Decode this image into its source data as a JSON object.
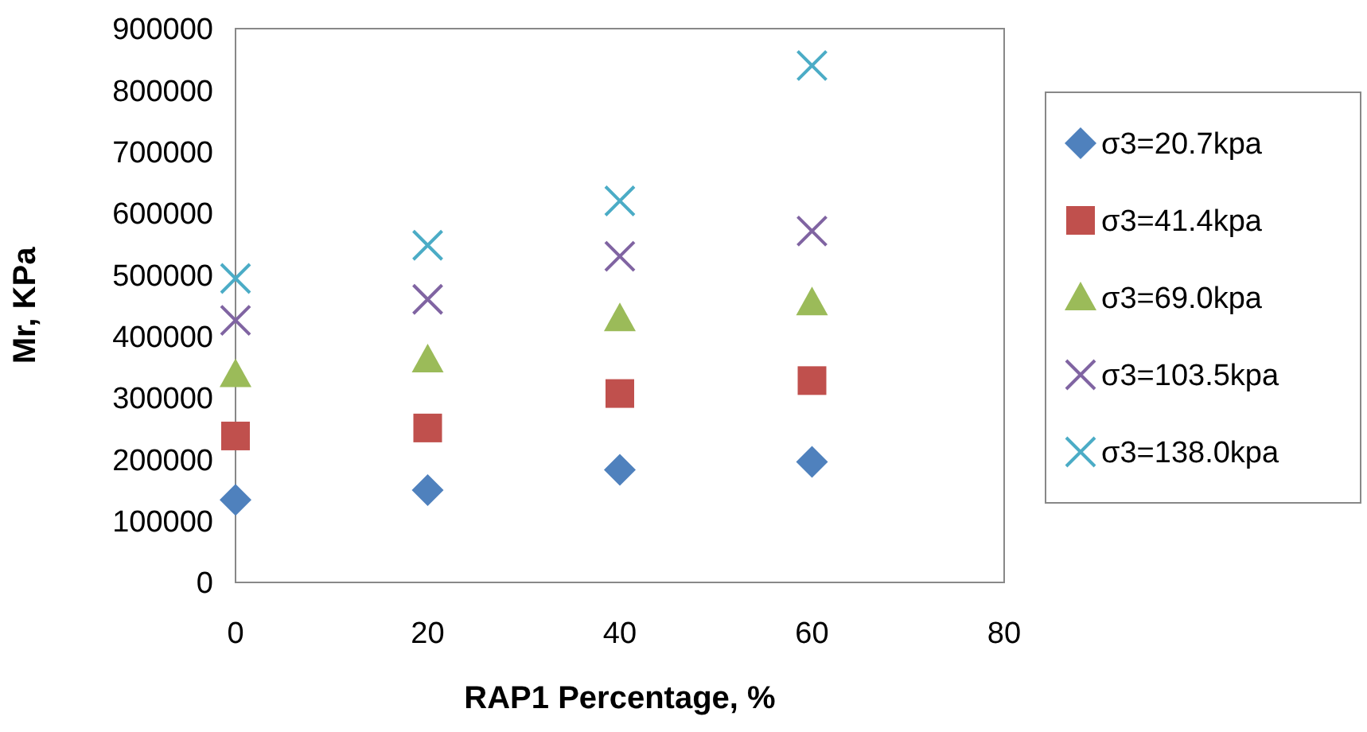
{
  "chart_data": {
    "type": "scatter",
    "xlabel": "RAP1 Percentage, %",
    "ylabel": "Mr, KPa",
    "x": [
      0,
      20,
      40,
      60
    ],
    "xlim": [
      0,
      80
    ],
    "xticks": [
      0,
      20,
      40,
      60,
      80
    ],
    "ylim": [
      0,
      900000
    ],
    "yticks": [
      0,
      100000,
      200000,
      300000,
      400000,
      500000,
      600000,
      700000,
      800000,
      900000
    ],
    "grid": false,
    "legend": "right",
    "series": [
      {
        "name": "σ3=20.7kpa",
        "color": "#4f81bd",
        "marker": "diamond",
        "values": [
          134000,
          150000,
          183000,
          196000
        ]
      },
      {
        "name": "σ3=41.4kpa",
        "color": "#c0504d",
        "marker": "square",
        "values": [
          238000,
          251000,
          307000,
          328000
        ]
      },
      {
        "name": "σ3=69.0kpa",
        "color": "#9bbb59",
        "marker": "triangle",
        "values": [
          338000,
          362000,
          429000,
          455000
        ]
      },
      {
        "name": "σ3=103.5kpa",
        "color": "#8064a2",
        "marker": "cross",
        "values": [
          426000,
          460000,
          530000,
          571000
        ]
      },
      {
        "name": "σ3=138.0kpa",
        "color": "#4bacc6",
        "marker": "cross",
        "values": [
          494000,
          548000,
          620000,
          840000
        ]
      }
    ]
  }
}
